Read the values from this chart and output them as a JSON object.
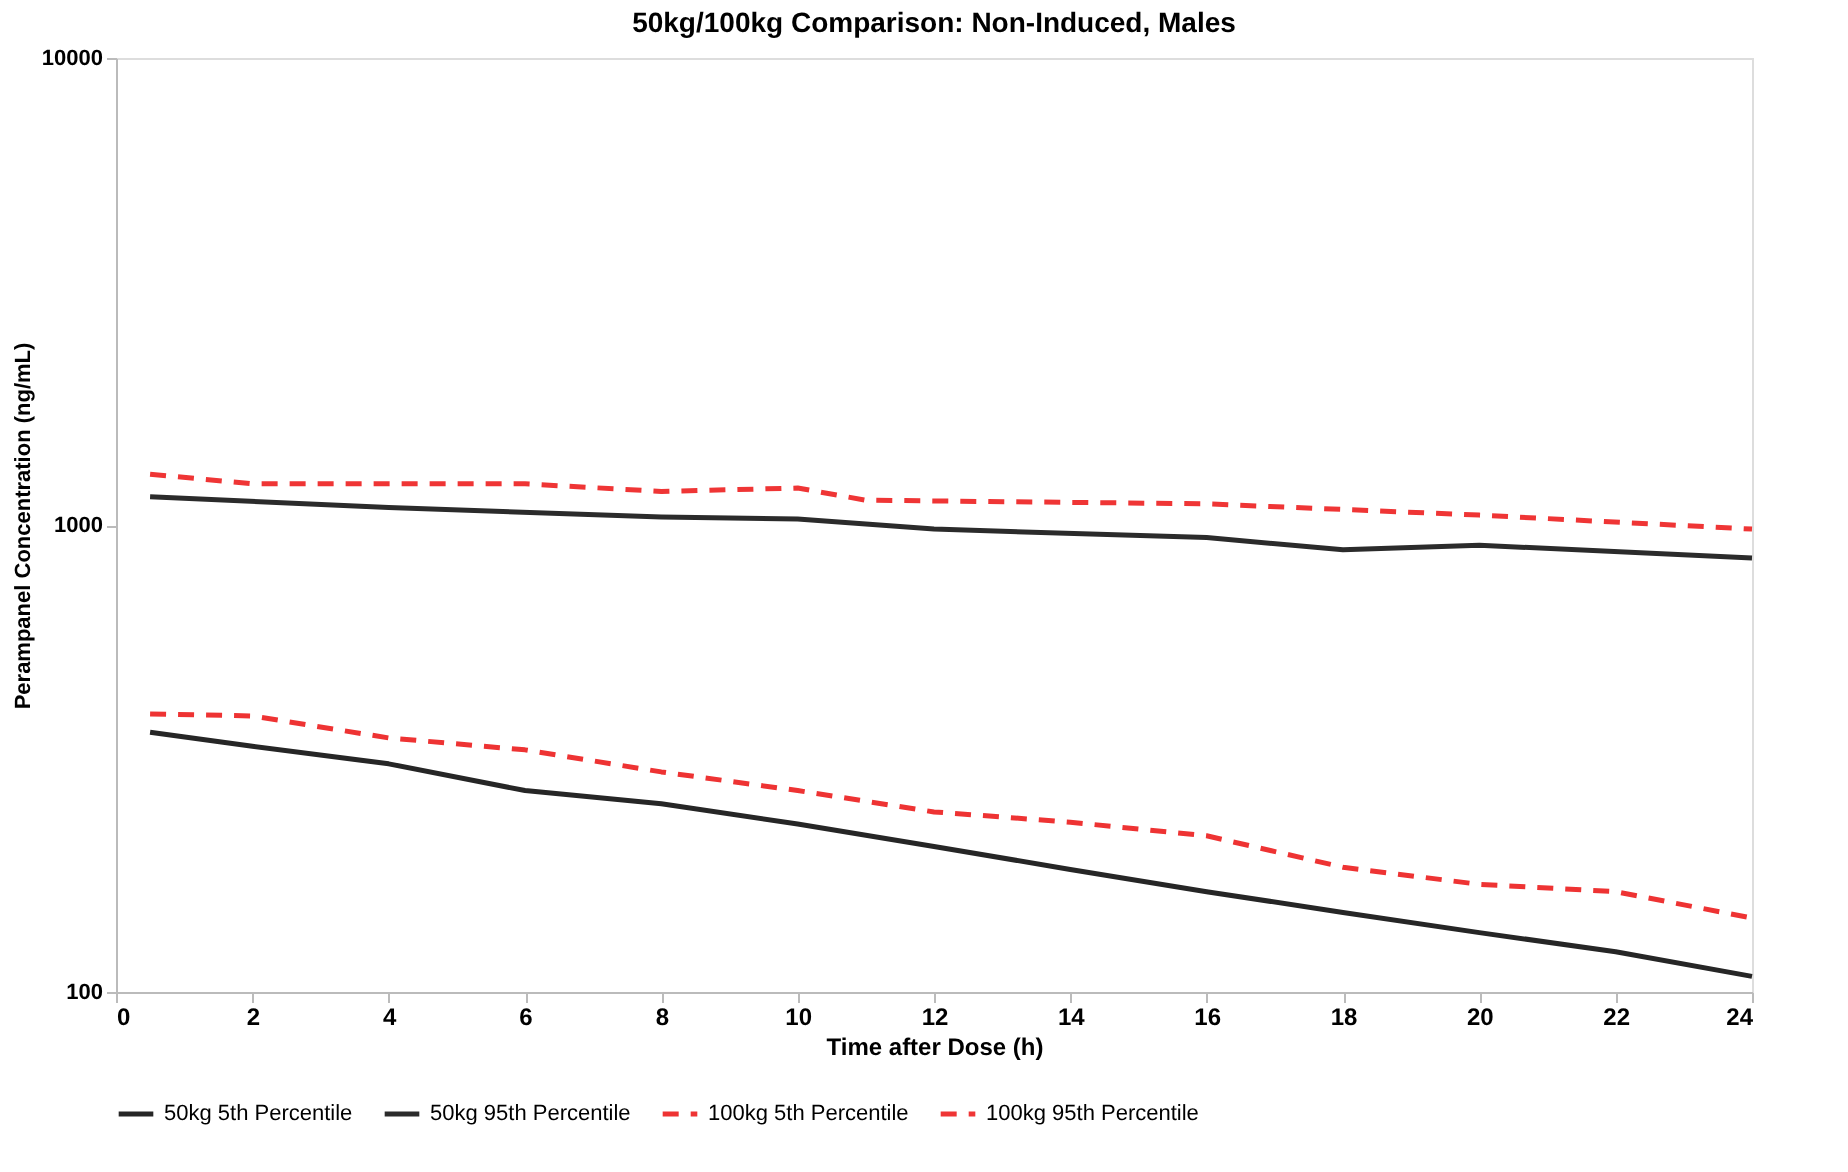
{
  "chart_data": {
    "type": "line",
    "title": "50kg/100kg Comparison: Non-Induced, Males",
    "xlabel": "Time after Dose (h)",
    "ylabel": "Perampanel Concentration (ng/mL)",
    "xlim": [
      0,
      24
    ],
    "xticks": [
      0,
      2,
      4,
      6,
      8,
      10,
      12,
      14,
      16,
      18,
      20,
      22,
      24
    ],
    "ylim": [
      100,
      10000
    ],
    "yticks": [
      100,
      1000,
      10000
    ],
    "log": true,
    "grid": false,
    "legend": "bottom",
    "marker": "none",
    "series": [
      {
        "name": "50kg 5th Percentile",
        "color": "#262626",
        "line_style": "solid",
        "x": [
          0.5,
          2,
          4,
          6,
          8,
          10,
          12,
          14,
          16,
          18,
          20,
          22,
          24
        ],
        "values": [
          360,
          336,
          308,
          270,
          253,
          229,
          205,
          183,
          164,
          148,
          134,
          122,
          108
        ]
      },
      {
        "name": "50kg 95th Percentile",
        "color": "#2b2b2b",
        "line_style": "solid",
        "x": [
          0.5,
          4,
          8,
          10,
          12,
          16,
          18,
          20,
          24
        ],
        "values": [
          1150,
          1090,
          1040,
          1030,
          980,
          940,
          885,
          905,
          850
        ]
      },
      {
        "name": "100kg 5th Percentile",
        "color": "#ee3333",
        "line_style": "dashed",
        "x": [
          0.5,
          2,
          4,
          6,
          8,
          10,
          12,
          14,
          16,
          18,
          20,
          22,
          24
        ],
        "values": [
          394,
          390,
          350,
          330,
          296,
          270,
          243,
          231,
          216,
          185,
          170,
          164,
          144
        ]
      },
      {
        "name": "100kg 95th Percentile",
        "color": "#ef3535",
        "line_style": "dashed",
        "x": [
          0.5,
          2,
          6,
          8,
          10,
          11,
          16,
          20,
          24
        ],
        "values": [
          1285,
          1225,
          1225,
          1180,
          1200,
          1130,
          1110,
          1050,
          980
        ]
      }
    ]
  }
}
